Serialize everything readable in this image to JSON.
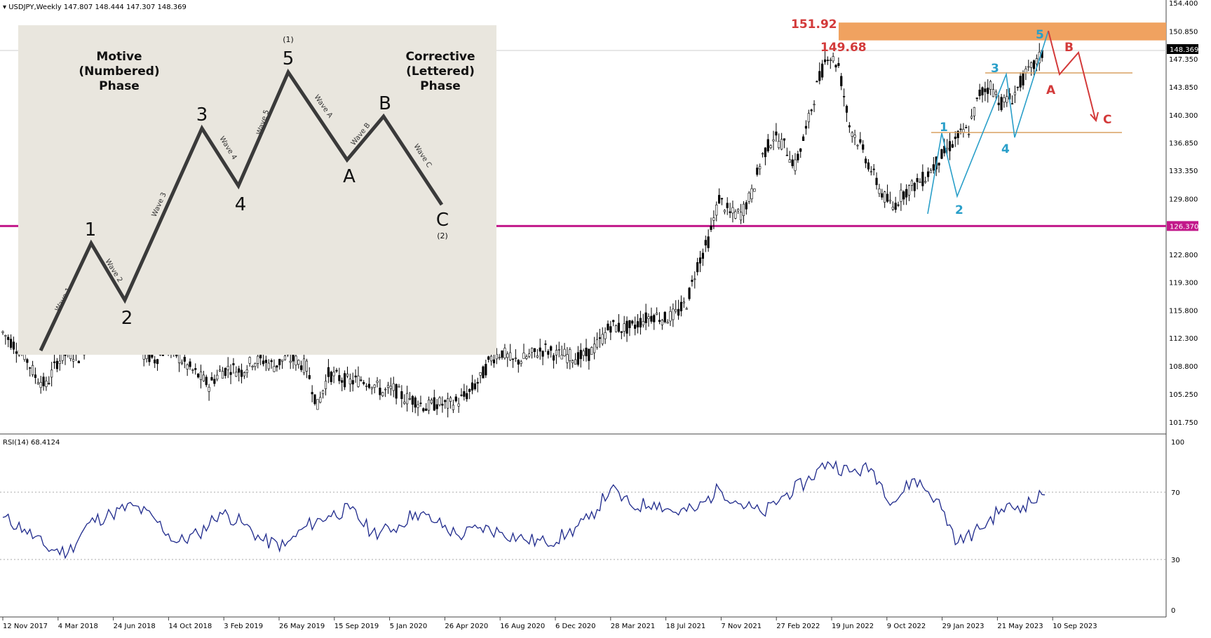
{
  "header": {
    "symbol": "USDJPY,Weekly",
    "ohlc": "147.807 148.444 147.307 148.369"
  },
  "rsi_label": "RSI(14) 68.4124",
  "price_tag": "148.369",
  "support_tag": "126.370",
  "colors": {
    "candles": "#000000",
    "support_line": "#c2188a",
    "zone": "#f0a260",
    "zone_label": "#d33a3a",
    "elliott_blue": "#2a9fc9",
    "elliott_red": "#d33a3a",
    "fib_lines": "#d8a060",
    "rsi_line": "#1f2a8c",
    "inset_bg": "#e9e6de"
  },
  "zone_labels": {
    "top": "151.92",
    "bottom": "149.68"
  },
  "wave_labels_blue": [
    "1",
    "2",
    "3",
    "4",
    "5"
  ],
  "wave_labels_red": [
    "A",
    "B",
    "C"
  ],
  "inset": {
    "left_title": [
      "Motive",
      "(Numbered)",
      "Phase"
    ],
    "right_title": [
      "Corrective",
      "(Lettered)",
      "Phase"
    ],
    "point_labels": [
      "1",
      "2",
      "3",
      "4",
      "5",
      "A",
      "B",
      "C"
    ],
    "degree_top": "(1)",
    "degree_bottom": "(2)",
    "wave_names": [
      "Wave 1",
      "Wave 2",
      "Wave 3",
      "Wave 4",
      "Wave 5",
      "Wave A",
      "Wave B",
      "Wave C"
    ]
  },
  "chart_data": [
    {
      "type": "candlestick",
      "title": "USDJPY,Weekly",
      "price_axis_ticks": [
        154.4,
        150.85,
        147.35,
        143.85,
        140.3,
        136.85,
        133.35,
        129.8,
        126.37,
        122.8,
        119.3,
        115.8,
        112.3,
        108.8,
        105.25,
        101.75
      ],
      "date_ticks": [
        "12 Nov 2017",
        "4 Mar 2018",
        "24 Jun 2018",
        "14 Oct 2018",
        "3 Feb 2019",
        "26 May 2019",
        "15 Sep 2019",
        "5 Jan 2020",
        "26 Apr 2020",
        "16 Aug 2020",
        "6 Dec 2020",
        "28 Mar 2021",
        "18 Jul 2021",
        "7 Nov 2021",
        "27 Feb 2022",
        "19 Jun 2022",
        "9 Oct 2022",
        "29 Jan 2023",
        "21 May 2023",
        "10 Sep 2023"
      ],
      "close_path_points": [
        [
          0,
          113.0
        ],
        [
          4,
          111.5
        ],
        [
          8,
          110.2
        ],
        [
          12,
          107.5
        ],
        [
          16,
          106.3
        ],
        [
          20,
          109.3
        ],
        [
          24,
          110.5
        ],
        [
          28,
          110.0
        ],
        [
          32,
          112.0
        ],
        [
          36,
          111.6
        ],
        [
          40,
          112.8
        ],
        [
          44,
          113.5
        ],
        [
          48,
          112.6
        ],
        [
          52,
          110.2
        ],
        [
          56,
          109.6
        ],
        [
          60,
          110.9
        ],
        [
          64,
          110.2
        ],
        [
          68,
          108.8
        ],
        [
          72,
          107.6
        ],
        [
          76,
          106.4
        ],
        [
          80,
          108.0
        ],
        [
          84,
          108.6
        ],
        [
          88,
          108.1
        ],
        [
          92,
          109.4
        ],
        [
          96,
          109.5
        ],
        [
          100,
          108.8
        ],
        [
          104,
          109.7
        ],
        [
          108,
          109.5
        ],
        [
          112,
          108.6
        ],
        [
          116,
          103.7
        ],
        [
          120,
          107.8
        ],
        [
          124,
          107.3
        ],
        [
          128,
          106.8
        ],
        [
          132,
          107.1
        ],
        [
          136,
          106.7
        ],
        [
          140,
          105.5
        ],
        [
          144,
          105.9
        ],
        [
          148,
          104.8
        ],
        [
          152,
          104.5
        ],
        [
          156,
          103.6
        ],
        [
          160,
          104.1
        ],
        [
          164,
          103.9
        ],
        [
          168,
          104.4
        ],
        [
          172,
          105.5
        ],
        [
          176,
          107.2
        ],
        [
          180,
          109.8
        ],
        [
          184,
          110.5
        ],
        [
          188,
          109.3
        ],
        [
          192,
          109.7
        ],
        [
          196,
          110.4
        ],
        [
          200,
          110.9
        ],
        [
          204,
          110.2
        ],
        [
          208,
          110.1
        ],
        [
          212,
          109.8
        ],
        [
          216,
          110.3
        ],
        [
          220,
          111.8
        ],
        [
          224,
          113.9
        ],
        [
          228,
          113.5
        ],
        [
          232,
          113.7
        ],
        [
          236,
          114.6
        ],
        [
          240,
          115.2
        ],
        [
          244,
          114.7
        ],
        [
          248,
          115.3
        ],
        [
          252,
          116.7
        ],
        [
          256,
          121.5
        ],
        [
          260,
          124.5
        ],
        [
          264,
          129.8
        ],
        [
          268,
          127.9
        ],
        [
          272,
          127.9
        ],
        [
          276,
          130.4
        ],
        [
          280,
          135.2
        ],
        [
          284,
          137.6
        ],
        [
          288,
          136.5
        ],
        [
          292,
          133.9
        ],
        [
          296,
          138.3
        ],
        [
          300,
          143.9
        ],
        [
          304,
          148.0
        ],
        [
          308,
          146.5
        ],
        [
          312,
          139.0
        ],
        [
          316,
          136.5
        ],
        [
          320,
          133.4
        ],
        [
          324,
          130.4
        ],
        [
          328,
          128.7
        ],
        [
          332,
          130.6
        ],
        [
          336,
          131.5
        ],
        [
          340,
          132.5
        ],
        [
          344,
          134.3
        ],
        [
          348,
          136.0
        ],
        [
          352,
          137.6
        ],
        [
          356,
          138.5
        ],
        [
          360,
          143.0
        ],
        [
          364,
          144.0
        ],
        [
          368,
          141.8
        ],
        [
          372,
          142.5
        ],
        [
          376,
          144.9
        ],
        [
          380,
          146.5
        ],
        [
          384,
          148.4
        ]
      ]
    },
    {
      "type": "line",
      "title": "RSI(14) 68.4124",
      "y_ticks": [
        0,
        30,
        70,
        100
      ],
      "levels": [
        30,
        70
      ],
      "x": [
        0,
        8,
        16,
        24,
        32,
        40,
        48,
        56,
        64,
        72,
        80,
        88,
        96,
        104,
        112,
        120,
        128,
        136,
        144,
        152,
        160,
        168,
        176,
        184,
        192,
        200,
        208,
        216,
        224,
        232,
        240,
        248,
        256,
        264,
        272,
        280,
        288,
        296,
        304,
        312,
        320,
        328,
        336,
        344,
        352,
        360,
        368,
        376,
        384
      ],
      "values": [
        55,
        48,
        37,
        34,
        52,
        57,
        62,
        54,
        40,
        45,
        58,
        52,
        41,
        38,
        50,
        56,
        60,
        46,
        48,
        58,
        52,
        44,
        49,
        46,
        42,
        40,
        45,
        54,
        72,
        61,
        64,
        58,
        60,
        72,
        63,
        57,
        68,
        76,
        88,
        82,
        84,
        64,
        78,
        66,
        40,
        48,
        60,
        62,
        68.4
      ]
    }
  ]
}
